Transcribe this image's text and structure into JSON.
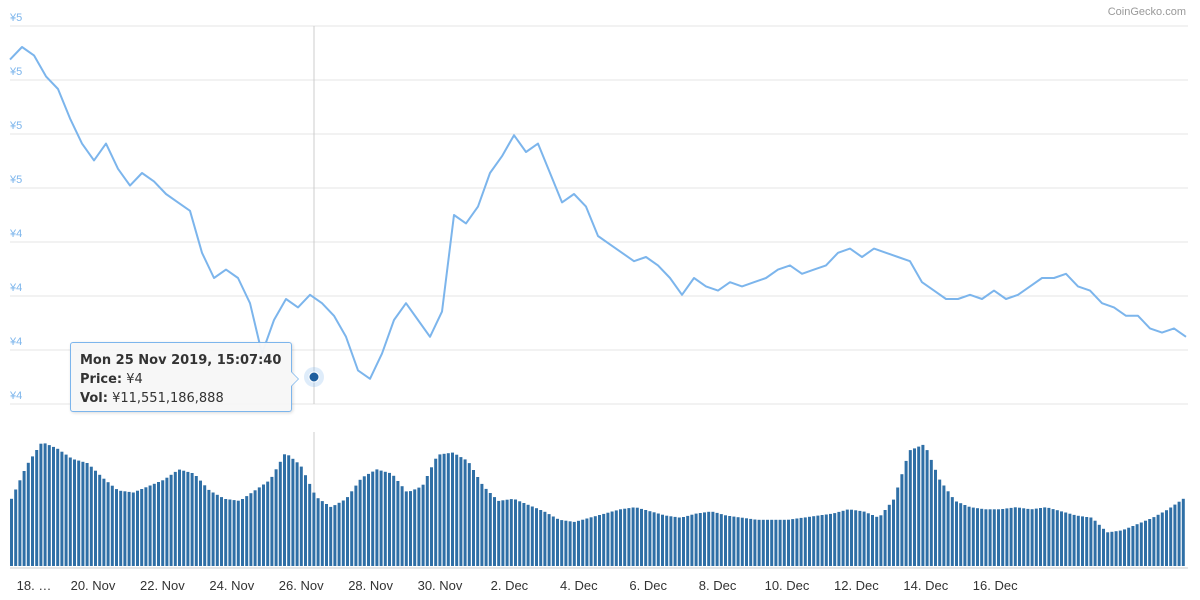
{
  "credit": "CoinGecko.com",
  "tooltip": {
    "date": "Mon 25 Nov 2019, 15:07:40",
    "price_label": "Price:",
    "price_value": "¥4",
    "vol_label": "Vol:",
    "vol_value": "¥11,551,186,888"
  },
  "colors": {
    "price_line": "#7cb5ec",
    "volume_bar": "#2f6fa6",
    "marker": "#1f5f9e",
    "grid": "#e6e6e6",
    "axis_text": "#7cb5ec"
  },
  "chart_data": [
    {
      "type": "line",
      "ylabels": [
        "¥5",
        "¥5",
        "¥5",
        "¥5",
        "¥4",
        "¥4",
        "¥4",
        "¥4"
      ],
      "xlabels": [
        "18. …",
        "20. Nov",
        "22. Nov",
        "24. Nov",
        "26. Nov",
        "28. Nov",
        "30. Nov",
        "2. Dec",
        "4. Dec",
        "6. Dec",
        "8. Dec",
        "10. Dec",
        "12. Dec",
        "14. Dec",
        "16. Dec"
      ],
      "series": [
        {
          "values": [
            4.92,
            4.95,
            4.93,
            4.88,
            4.85,
            4.78,
            4.72,
            4.68,
            4.72,
            4.66,
            4.62,
            4.65,
            4.63,
            4.6,
            4.58,
            4.56,
            4.46,
            4.4,
            4.42,
            4.4,
            4.34,
            4.22,
            4.3,
            4.35,
            4.33,
            4.36,
            4.34,
            4.31,
            4.26,
            4.18,
            4.16,
            4.22,
            4.3,
            4.34,
            4.3,
            4.26,
            4.32,
            4.55,
            4.53,
            4.57,
            4.65,
            4.69,
            4.74,
            4.7,
            4.72,
            4.65,
            4.58,
            4.6,
            4.57,
            4.5,
            4.48,
            4.46,
            4.44,
            4.45,
            4.43,
            4.4,
            4.36,
            4.4,
            4.38,
            4.37,
            4.39,
            4.38,
            4.39,
            4.4,
            4.42,
            4.43,
            4.41,
            4.42,
            4.43,
            4.46,
            4.47,
            4.45,
            4.47,
            4.46,
            4.45,
            4.44,
            4.39,
            4.37,
            4.35,
            4.35,
            4.36,
            4.35,
            4.37,
            4.35,
            4.36,
            4.38,
            4.4,
            4.4,
            4.41,
            4.38,
            4.37,
            4.34,
            4.33,
            4.31,
            4.31,
            4.28,
            4.27,
            4.28,
            4.26
          ]
        }
      ]
    },
    {
      "type": "bar",
      "series": [
        {
          "name": "Vol",
          "values": [
            3.2,
            4.8,
            5.9,
            5.6,
            5.1,
            4.9,
            4.2,
            3.6,
            3.5,
            3.8,
            4.1,
            4.6,
            4.4,
            3.6,
            3.2,
            3.1,
            3.6,
            4.1,
            5.4,
            4.8,
            3.3,
            2.8,
            3.2,
            4.2,
            4.6,
            4.4,
            3.5,
            3.8,
            5.3,
            5.4,
            5.0,
            3.8,
            3.1,
            3.2,
            2.9,
            2.6,
            2.2,
            2.1,
            2.3,
            2.5,
            2.7,
            2.8,
            2.6,
            2.4,
            2.3,
            2.5,
            2.6,
            2.4,
            2.3,
            2.2,
            2.2,
            2.2,
            2.3,
            2.4,
            2.5,
            2.7,
            2.6,
            2.3,
            3.2,
            5.5,
            5.8,
            4.1,
            3.1,
            2.8,
            2.7,
            2.7,
            2.8,
            2.7,
            2.8,
            2.6,
            2.4,
            2.3,
            1.6,
            1.7,
            2.0,
            2.3,
            2.7,
            3.2
          ]
        }
      ]
    }
  ]
}
